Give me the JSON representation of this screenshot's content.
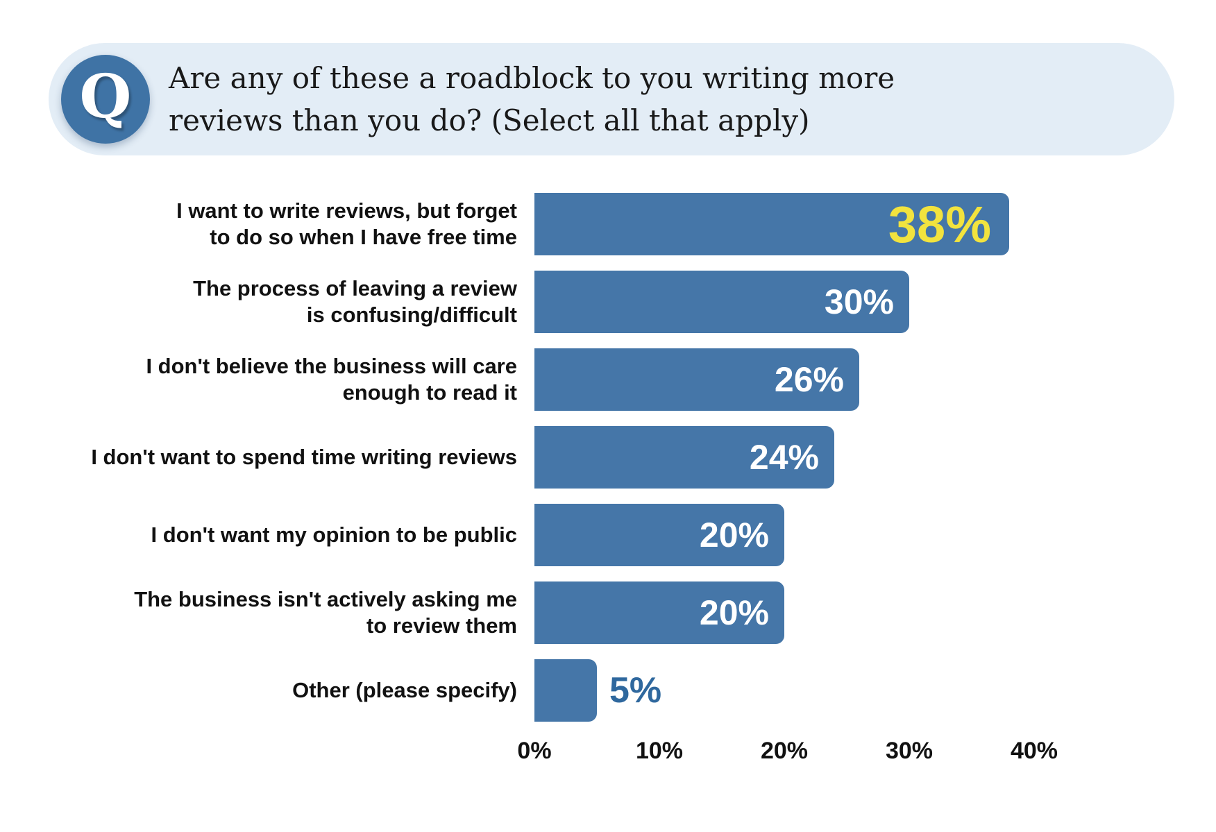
{
  "header": {
    "icon_letter": "Q",
    "question_line1": "Are any of these a roadblock to you writing more",
    "question_line2": "reviews than you do? (Select all that apply)"
  },
  "colors": {
    "bar_blue": "#4576A8",
    "pill_background": "#E3EDF6",
    "q_badge_blue": "#3F73A5",
    "highlight_yellow": "#F2E33E",
    "outside_value_blue": "#2F689E",
    "value_label_white": "#FFFFFF",
    "text_dark": "#191919"
  },
  "chart_data": {
    "type": "bar",
    "orientation": "horizontal",
    "title": "Are any of these a roadblock to you writing more reviews than you do? (Select all that apply)",
    "unit": "%",
    "xlim": [
      0,
      40
    ],
    "x_ticks": [
      "0%",
      "10%",
      "20%",
      "30%",
      "40%"
    ],
    "grid": false,
    "legend": false,
    "categories": [
      "I want to write reviews, but forget to do so when I have free time",
      "The process of leaving a review is confusing/difficult",
      "I don't believe the business will care enough to read it",
      "I don't want to spend time writing reviews",
      "I don't want my opinion to be public",
      "The business isn't actively asking me to review them",
      "Other (please specify)"
    ],
    "values": [
      38,
      30,
      26,
      24,
      20,
      20,
      5
    ],
    "rows": [
      {
        "label_lines": [
          "I want to write reviews, but forget",
          "to do so when I have free time"
        ],
        "value": 38,
        "value_label": "38%",
        "value_label_position": "inside",
        "value_label_color": "yellow"
      },
      {
        "label_lines": [
          "The process of leaving a review",
          "is confusing/difficult"
        ],
        "value": 30,
        "value_label": "30%",
        "value_label_position": "inside",
        "value_label_color": "white"
      },
      {
        "label_lines": [
          "I don't believe the business will care",
          "enough to read it"
        ],
        "value": 26,
        "value_label": "26%",
        "value_label_position": "inside",
        "value_label_color": "white"
      },
      {
        "label_lines": [
          "I don't want to spend time writing reviews"
        ],
        "value": 24,
        "value_label": "24%",
        "value_label_position": "inside",
        "value_label_color": "white"
      },
      {
        "label_lines": [
          "I don't want my opinion to be public"
        ],
        "value": 20,
        "value_label": "20%",
        "value_label_position": "inside",
        "value_label_color": "white"
      },
      {
        "label_lines": [
          "The business isn't actively asking me",
          "to review them"
        ],
        "value": 20,
        "value_label": "20%",
        "value_label_position": "inside",
        "value_label_color": "white"
      },
      {
        "label_lines": [
          "Other (please specify)"
        ],
        "value": 5,
        "value_label": "5%",
        "value_label_position": "outside",
        "value_label_color": "blue"
      }
    ]
  }
}
